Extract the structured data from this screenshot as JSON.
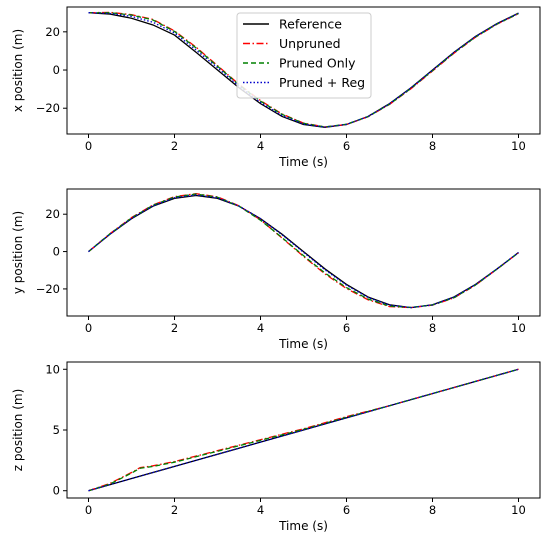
{
  "chart_data": [
    {
      "type": "line",
      "xlabel": "Time (s)",
      "ylabel": "x position (m)",
      "xlim": [
        -0.5,
        10.5
      ],
      "ylim": [
        -33.5,
        33.0
      ],
      "xticks": [
        0,
        2,
        4,
        6,
        8,
        10
      ],
      "yticks": [
        -20,
        0,
        20
      ],
      "grid": false,
      "legend": "upper center",
      "series": [
        {
          "name": "Reference",
          "color": "#000000",
          "style": "solid",
          "x": [
            0,
            0.5,
            1,
            1.5,
            2,
            2.5,
            3,
            3.5,
            4,
            4.5,
            5,
            5.5,
            6,
            6.5,
            7,
            7.5,
            8,
            8.5,
            9,
            9.5,
            10
          ],
          "y": [
            30,
            29.3,
            27.1,
            23.6,
            18.3,
            9.3,
            0,
            -9.3,
            -17.6,
            -24.3,
            -28.5,
            -30,
            -28.5,
            -24.3,
            -17.6,
            -9.3,
            0,
            9.3,
            17.6,
            24.3,
            29.8
          ]
        },
        {
          "name": "Unpruned",
          "color": "#ff0000",
          "style": "dashdot",
          "x": [
            0,
            0.5,
            1,
            1.5,
            2,
            2.5,
            3,
            3.5,
            4,
            4.5,
            5,
            5.5,
            6,
            6.5,
            7,
            7.5,
            8,
            8.5,
            9,
            9.5,
            10
          ],
          "y": [
            30,
            30.2,
            29,
            26.5,
            20.5,
            12,
            2.3,
            -7.5,
            -16,
            -23,
            -27.8,
            -29.8,
            -28.5,
            -24.5,
            -18,
            -9.8,
            -0.5,
            8.8,
            17.2,
            24,
            29.5
          ]
        },
        {
          "name": "Pruned Only",
          "color": "#008000",
          "style": "dashed",
          "x": [
            0,
            0.5,
            1,
            1.5,
            2,
            2.5,
            3,
            3.5,
            4,
            4.5,
            5,
            5.5,
            6,
            6.5,
            7,
            7.5,
            8,
            8.5,
            9,
            9.5,
            10
          ],
          "y": [
            30,
            30,
            28.8,
            26.2,
            20.2,
            11.6,
            2,
            -7.8,
            -16.3,
            -23.2,
            -27.9,
            -29.8,
            -28.4,
            -24.4,
            -17.9,
            -9.6,
            -0.3,
            9,
            17.3,
            24.1,
            29.6
          ]
        },
        {
          "name": "Pruned + Reg",
          "color": "#0000cc",
          "style": "dotted",
          "x": [
            0,
            0.5,
            1,
            1.5,
            2,
            2.5,
            3,
            3.5,
            4,
            4.5,
            5,
            5.5,
            6,
            6.5,
            7,
            7.5,
            8,
            8.5,
            9,
            9.5,
            10
          ],
          "y": [
            30,
            29.6,
            28.1,
            25,
            19.4,
            10.5,
            1.2,
            -8.5,
            -17,
            -23.8,
            -28.3,
            -29.9,
            -28.5,
            -24.4,
            -17.7,
            -9.4,
            -0.1,
            9.2,
            17.5,
            24.2,
            29.7
          ]
        }
      ]
    },
    {
      "type": "line",
      "xlabel": "Time (s)",
      "ylabel": "y position (m)",
      "xlim": [
        -0.5,
        10.5
      ],
      "ylim": [
        -34.5,
        33.5
      ],
      "xticks": [
        0,
        2,
        4,
        6,
        8,
        10
      ],
      "yticks": [
        -20,
        0,
        20
      ],
      "grid": false,
      "series": [
        {
          "name": "Reference",
          "color": "#000000",
          "style": "solid",
          "x": [
            0,
            0.5,
            1,
            1.5,
            2,
            2.5,
            3,
            3.5,
            4,
            4.5,
            5,
            5.5,
            6,
            6.5,
            7,
            7.5,
            8,
            8.5,
            9,
            9.5,
            10
          ],
          "y": [
            0,
            9.3,
            17.6,
            24.3,
            28.5,
            30,
            28.5,
            24.3,
            17.6,
            9.3,
            0,
            -9.3,
            -17.6,
            -24.3,
            -28.5,
            -30,
            -28.5,
            -24.3,
            -17.6,
            -9.3,
            -0.5
          ]
        },
        {
          "name": "Unpruned",
          "color": "#ff0000",
          "style": "dashdot",
          "x": [
            0,
            0.5,
            1,
            1.5,
            2,
            2.5,
            3,
            3.5,
            4,
            4.5,
            5,
            5.5,
            6,
            6.5,
            7,
            7.5,
            8,
            8.5,
            9,
            9.5,
            10
          ],
          "y": [
            0,
            9.6,
            18.2,
            25,
            29.4,
            31,
            29.3,
            24.5,
            17,
            7.3,
            -2.6,
            -12,
            -19.8,
            -25.8,
            -29.5,
            -30,
            -28.7,
            -24.8,
            -18,
            -9.4,
            -0.6
          ]
        },
        {
          "name": "Pruned Only",
          "color": "#008000",
          "style": "dashed",
          "x": [
            0,
            0.5,
            1,
            1.5,
            2,
            2.5,
            3,
            3.5,
            4,
            4.5,
            5,
            5.5,
            6,
            6.5,
            7,
            7.5,
            8,
            8.5,
            9,
            9.5,
            10
          ],
          "y": [
            0,
            9.5,
            18,
            24.8,
            29.2,
            30.8,
            29.1,
            24.3,
            16.8,
            7.5,
            -2.2,
            -11.5,
            -19.3,
            -25.4,
            -29.2,
            -29.9,
            -28.6,
            -24.7,
            -17.9,
            -9.4,
            -0.6
          ]
        },
        {
          "name": "Pruned + Reg",
          "color": "#0000cc",
          "style": "dotted",
          "x": [
            0,
            0.5,
            1,
            1.5,
            2,
            2.5,
            3,
            3.5,
            4,
            4.5,
            5,
            5.5,
            6,
            6.5,
            7,
            7.5,
            8,
            8.5,
            9,
            9.5,
            10
          ],
          "y": [
            0,
            9.4,
            17.8,
            24.5,
            28.8,
            30.3,
            28.8,
            24.4,
            17.6,
            9,
            -0.4,
            -9.8,
            -18,
            -24.6,
            -28.7,
            -30,
            -28.6,
            -24.4,
            -17.7,
            -9.3,
            -0.5
          ]
        }
      ]
    },
    {
      "type": "line",
      "xlabel": "Time (s)",
      "ylabel": "z position (m)",
      "xlim": [
        -0.5,
        10.5
      ],
      "ylim": [
        -0.6,
        10.6
      ],
      "xticks": [
        0,
        2,
        4,
        6,
        8,
        10
      ],
      "yticks": [
        0,
        5,
        10
      ],
      "grid": false,
      "series": [
        {
          "name": "Reference",
          "color": "#000000",
          "style": "solid",
          "x": [
            0,
            10
          ],
          "y": [
            0,
            10
          ]
        },
        {
          "name": "Unpruned",
          "color": "#ff0000",
          "style": "dashdot",
          "x": [
            0,
            0.5,
            1,
            1.2,
            1.5,
            2,
            3,
            4,
            5,
            6,
            7,
            8,
            9,
            10
          ],
          "y": [
            0,
            0.6,
            1.5,
            1.9,
            2.05,
            2.4,
            3.3,
            4.2,
            5.1,
            6.1,
            7,
            8,
            9,
            10
          ]
        },
        {
          "name": "Pruned Only",
          "color": "#008000",
          "style": "dashed",
          "x": [
            0,
            0.5,
            1,
            1.2,
            1.5,
            2,
            3,
            4,
            5,
            6,
            7,
            8,
            9,
            10
          ],
          "y": [
            0,
            0.55,
            1.45,
            1.85,
            2.0,
            2.35,
            3.25,
            4.15,
            5.05,
            6.05,
            7,
            8,
            9,
            10
          ]
        },
        {
          "name": "Pruned + Reg",
          "color": "#0000cc",
          "style": "dotted",
          "x": [
            0,
            1,
            2,
            3,
            4,
            5,
            6,
            7,
            8,
            9,
            10
          ],
          "y": [
            0,
            1,
            2,
            3,
            4,
            5,
            6,
            7,
            8,
            9,
            10
          ]
        }
      ]
    }
  ]
}
